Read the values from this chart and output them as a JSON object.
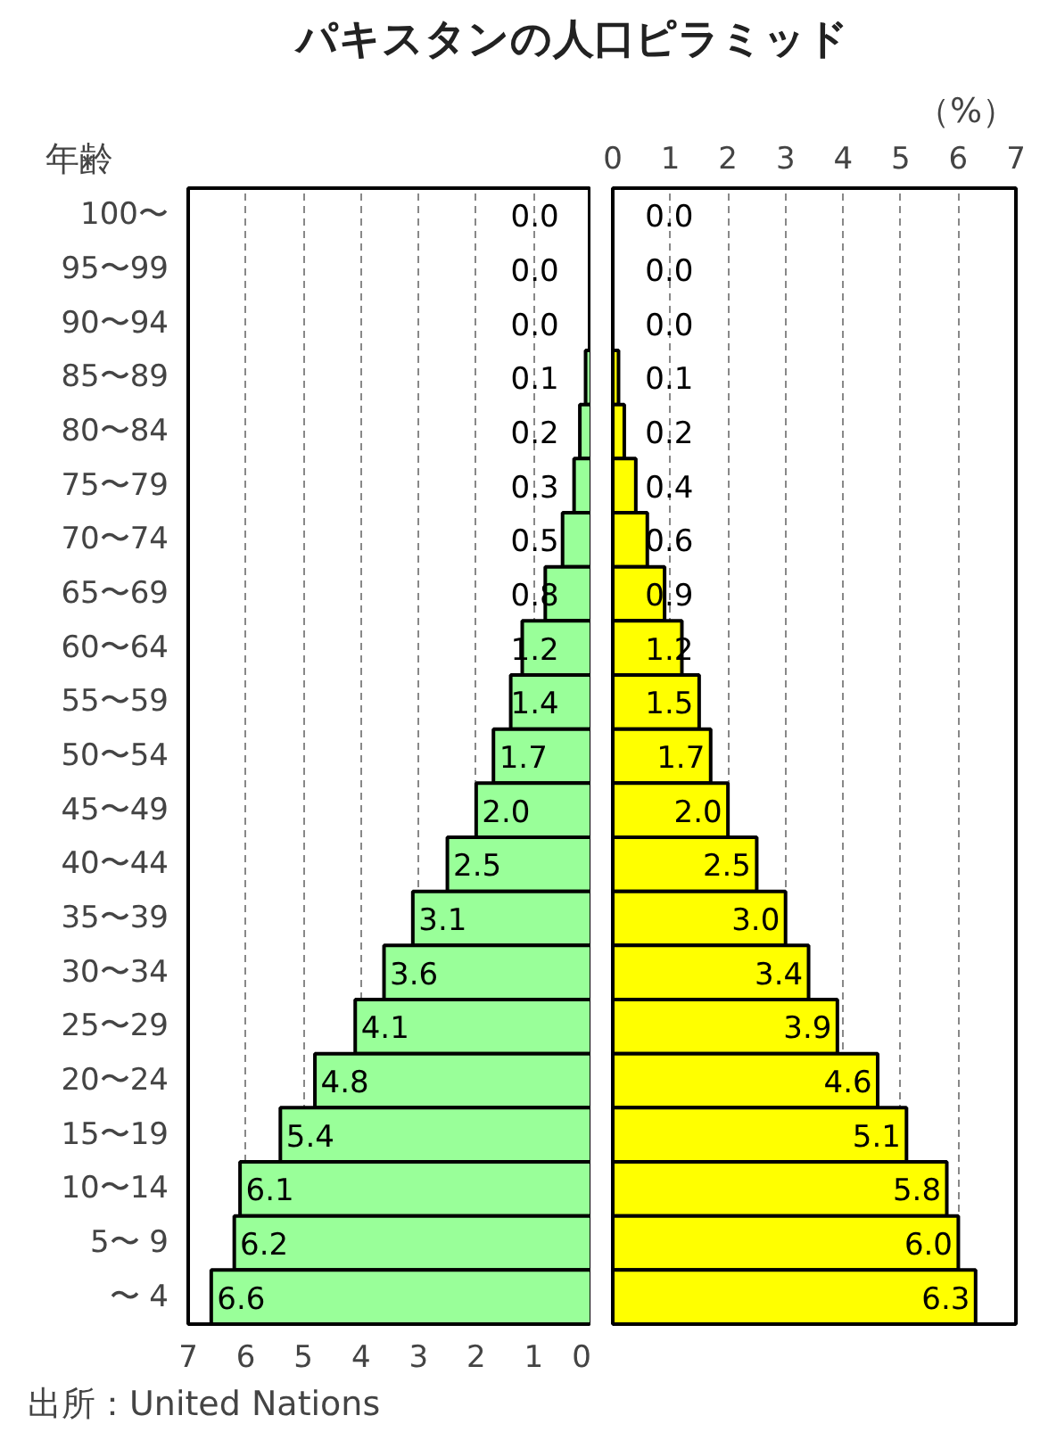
{
  "chart_data": [
    {
      "type": "bar",
      "orientation": "horizontal",
      "title": "パキスタンの人口ピラミッド",
      "ylabel": "年齢",
      "annotations": [
        "出所：United Nations"
      ],
      "categories": [
        "100〜",
        "95〜99",
        "90〜94",
        "85〜89",
        "80〜84",
        "75〜79",
        "70〜74",
        "65〜69",
        "60〜64",
        "55〜59",
        "50〜54",
        "45〜49",
        "40〜44",
        "35〜39",
        "30〜34",
        "25〜29",
        "20〜24",
        "15〜19",
        "10〜14",
        "5〜 9",
        "〜 4"
      ],
      "series": [
        {
          "color": "#99ff99",
          "values": [
            0.0,
            0.0,
            0.0,
            0.1,
            0.2,
            0.3,
            0.5,
            0.8,
            1.2,
            1.4,
            1.7,
            2.0,
            2.5,
            3.1,
            3.6,
            4.1,
            4.8,
            5.4,
            6.1,
            6.2,
            6.6
          ],
          "value_labels": [
            "0.0",
            "0.0",
            "0.0",
            "0.1",
            "0.2",
            "0.3",
            "0.5",
            "0.8",
            "1.2",
            "1.4",
            "1.7",
            "2.0",
            "2.5",
            "3.1",
            "3.6",
            "4.1",
            "4.8",
            "5.4",
            "6.1",
            "6.2",
            "6.6"
          ]
        }
      ],
      "xlim": [
        7,
        0
      ],
      "xticks": [
        7,
        6,
        5,
        4,
        3,
        2,
        1,
        0
      ],
      "grid": "x"
    },
    {
      "type": "bar",
      "orientation": "horizontal",
      "annotations": [
        "（%）"
      ],
      "categories": [
        null,
        null,
        null,
        null,
        null,
        null,
        null,
        null,
        null,
        null,
        null,
        null,
        null,
        null,
        null,
        null,
        null,
        null,
        null,
        null,
        null
      ],
      "series": [
        {
          "color": "#ffff00",
          "values": [
            0.0,
            0.0,
            0.0,
            0.1,
            0.2,
            0.4,
            0.6,
            0.9,
            1.2,
            1.5,
            1.7,
            2.0,
            2.5,
            3.0,
            3.4,
            3.9,
            4.6,
            5.1,
            5.8,
            6.0,
            6.3
          ],
          "value_labels": [
            "0.0",
            "0.0",
            "0.0",
            "0.1",
            "0.2",
            "0.4",
            "0.6",
            "0.9",
            "1.2",
            "1.5",
            "1.7",
            "2.0",
            "2.5",
            "3.0",
            "3.4",
            "3.9",
            "4.6",
            "5.1",
            "5.8",
            "6.0",
            "6.3"
          ]
        }
      ],
      "x2lim": [
        0,
        7
      ],
      "x2ticks": [
        0,
        1,
        2,
        3,
        4,
        5,
        6,
        7
      ],
      "grid": "x",
      "tick_labels": "x"
    }
  ]
}
